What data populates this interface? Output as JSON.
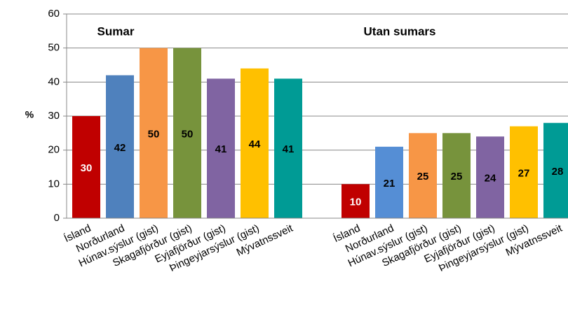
{
  "chart_data": {
    "type": "bar",
    "y_label": "%",
    "annotations": [
      "Sumar",
      "Utan sumars"
    ],
    "categories": [
      "Ísland",
      "Norðurland",
      "Húnav.sýslur (gist)",
      "Skagafjörður (gist)",
      "Eyjafjörður (gist)",
      "Þingeyjarsýslur (gist)",
      "Mývatnssveit",
      null,
      "Ísland",
      "Norðurland",
      "Húnav.sýslur (gist)",
      "Skagafjörður (gist)",
      "Eyjafjörður (gist)",
      "Þingeyjarsýslur (gist)",
      "Mývatnssveit"
    ],
    "values": [
      30,
      42,
      50,
      50,
      41,
      44,
      41,
      null,
      10,
      21,
      25,
      25,
      24,
      27,
      28
    ],
    "colors": [
      "#c00000",
      "#4f81bd",
      "#f79646",
      "#77933c",
      "#8064a2",
      "#ffc000",
      "#009b95",
      null,
      "#c00000",
      "#558ed5",
      "#f79646",
      "#77933c",
      "#8064a2",
      "#ffc000",
      "#009b95"
    ],
    "value_label_colors": [
      "#ffffff",
      "#000000",
      "#000000",
      "#000000",
      "#000000",
      "#000000",
      "#000000",
      null,
      "#ffffff",
      "#000000",
      "#000000",
      "#000000",
      "#000000",
      "#000000",
      "#000000"
    ],
    "ylim": [
      0,
      60
    ],
    "yticks": [
      0,
      10,
      20,
      30,
      40,
      50,
      60
    ],
    "grid": true
  }
}
